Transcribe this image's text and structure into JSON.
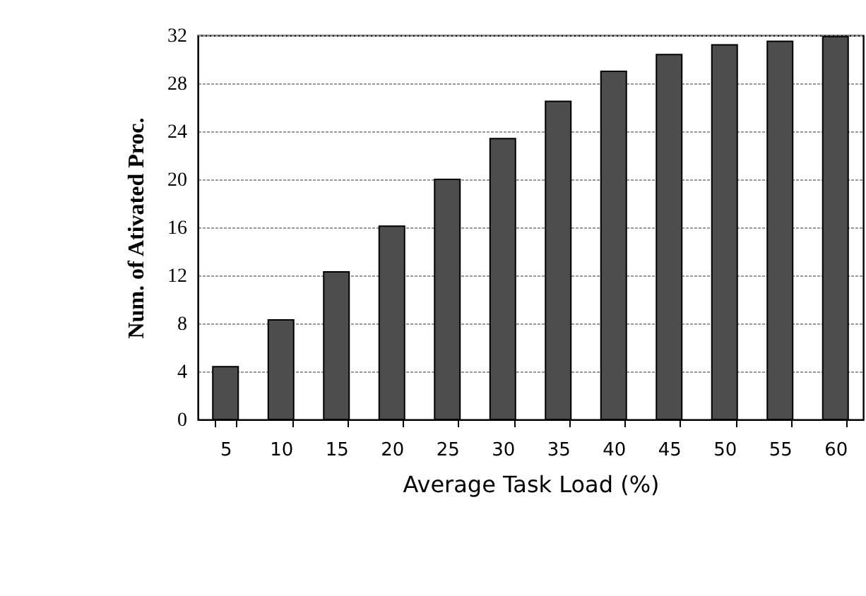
{
  "chart_data": {
    "type": "bar",
    "xlabel": "Average Task Load (%)",
    "ylabel": "Num. of Ativated Proc.",
    "categories": [
      "5",
      "10",
      "15",
      "20",
      "25",
      "30",
      "35",
      "40",
      "45",
      "50",
      "55",
      "60"
    ],
    "values": [
      4.4,
      8.3,
      12.3,
      16.1,
      20,
      23.4,
      26.5,
      29.0,
      30.4,
      31.2,
      31.5,
      31.9
    ],
    "color": "#4d4d4d",
    "ylim": [
      0,
      32
    ],
    "yticks": [
      0,
      4,
      8,
      12,
      16,
      20,
      24,
      28,
      32
    ],
    "grid": "y"
  }
}
